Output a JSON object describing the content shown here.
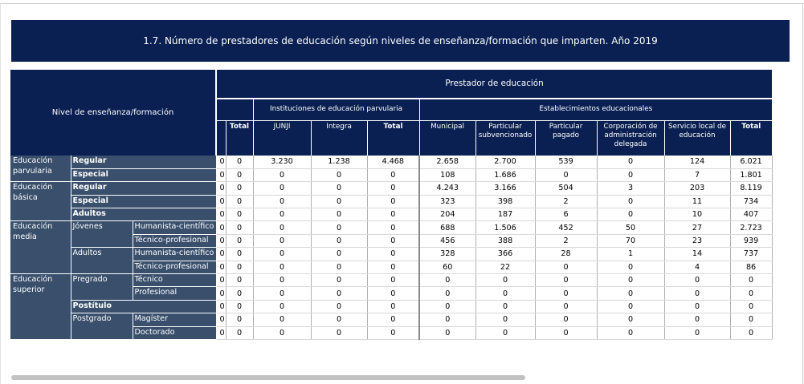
{
  "title": "1.7. Número de prestadores de educación según niveles de enseñanza/formación que imparten. Año 2019",
  "header": {
    "nivel": "Nivel de enseñanza/formación",
    "prestador": "Prestador de educación",
    "grupo_parvularia": "Instituciones de educación parvularia",
    "grupo_establecimientos": "Establecimientos educacionales",
    "col_total_a": "Total",
    "col_junji": "JUNJI",
    "col_integra": "Integra",
    "col_total_b": "Total",
    "col_municipal": "Municipal",
    "col_part_subv": "Particular subvencionado",
    "col_part_pag": "Particular pagado",
    "col_corp": "Corporación de administración delegada",
    "col_slep": "Servicio local de educación",
    "col_total_c": "Total"
  },
  "labels": {
    "parvularia": "Educación parvularia",
    "basica": "Educación básica",
    "media": "Educación media",
    "superior": "Educación superior",
    "regular": "Regular",
    "especial": "Especial",
    "adultos": "Adultos",
    "jovenes": "Jóvenes",
    "adultos_media": "Adultos",
    "hc": "Humanista-científico",
    "tp": "Técnico-profesional",
    "pregrado": "Pregrado",
    "tecnico": "Técnico",
    "profesional": "Profesional",
    "postitulo": "Postítulo",
    "postgrado": "Postgrado",
    "magister": "Magíster",
    "doctorado": "Doctorado"
  },
  "rows": [
    [
      "0",
      "0",
      "3.230",
      "1.238",
      "4.468",
      "2.658",
      "2.700",
      "539",
      "0",
      "124",
      "6.021"
    ],
    [
      "0",
      "0",
      "0",
      "0",
      "0",
      "108",
      "1.686",
      "0",
      "0",
      "7",
      "1.801"
    ],
    [
      "0",
      "0",
      "0",
      "0",
      "0",
      "4.243",
      "3.166",
      "504",
      "3",
      "203",
      "8.119"
    ],
    [
      "0",
      "0",
      "0",
      "0",
      "0",
      "323",
      "398",
      "2",
      "0",
      "11",
      "734"
    ],
    [
      "0",
      "0",
      "0",
      "0",
      "0",
      "204",
      "187",
      "6",
      "0",
      "10",
      "407"
    ],
    [
      "0",
      "0",
      "0",
      "0",
      "0",
      "688",
      "1.506",
      "452",
      "50",
      "27",
      "2.723"
    ],
    [
      "0",
      "0",
      "0",
      "0",
      "0",
      "456",
      "388",
      "2",
      "70",
      "23",
      "939"
    ],
    [
      "0",
      "0",
      "0",
      "0",
      "0",
      "328",
      "366",
      "28",
      "1",
      "14",
      "737"
    ],
    [
      "0",
      "0",
      "0",
      "0",
      "0",
      "60",
      "22",
      "0",
      "0",
      "4",
      "86"
    ],
    [
      "0",
      "0",
      "0",
      "0",
      "0",
      "0",
      "0",
      "0",
      "0",
      "0",
      "0"
    ],
    [
      "0",
      "0",
      "0",
      "0",
      "0",
      "0",
      "0",
      "0",
      "0",
      "0",
      "0"
    ],
    [
      "0",
      "0",
      "0",
      "0",
      "0",
      "0",
      "0",
      "0",
      "0",
      "0",
      "0"
    ],
    [
      "0",
      "0",
      "0",
      "0",
      "0",
      "0",
      "0",
      "0",
      "0",
      "0",
      "0"
    ],
    [
      "0",
      "0",
      "0",
      "0",
      "0",
      "0",
      "0",
      "0",
      "0",
      "0",
      "0"
    ]
  ],
  "colors": {
    "header_navy": "#0a2052",
    "label_slate": "#394f6c",
    "scrollbar": "#c2c2c2"
  }
}
